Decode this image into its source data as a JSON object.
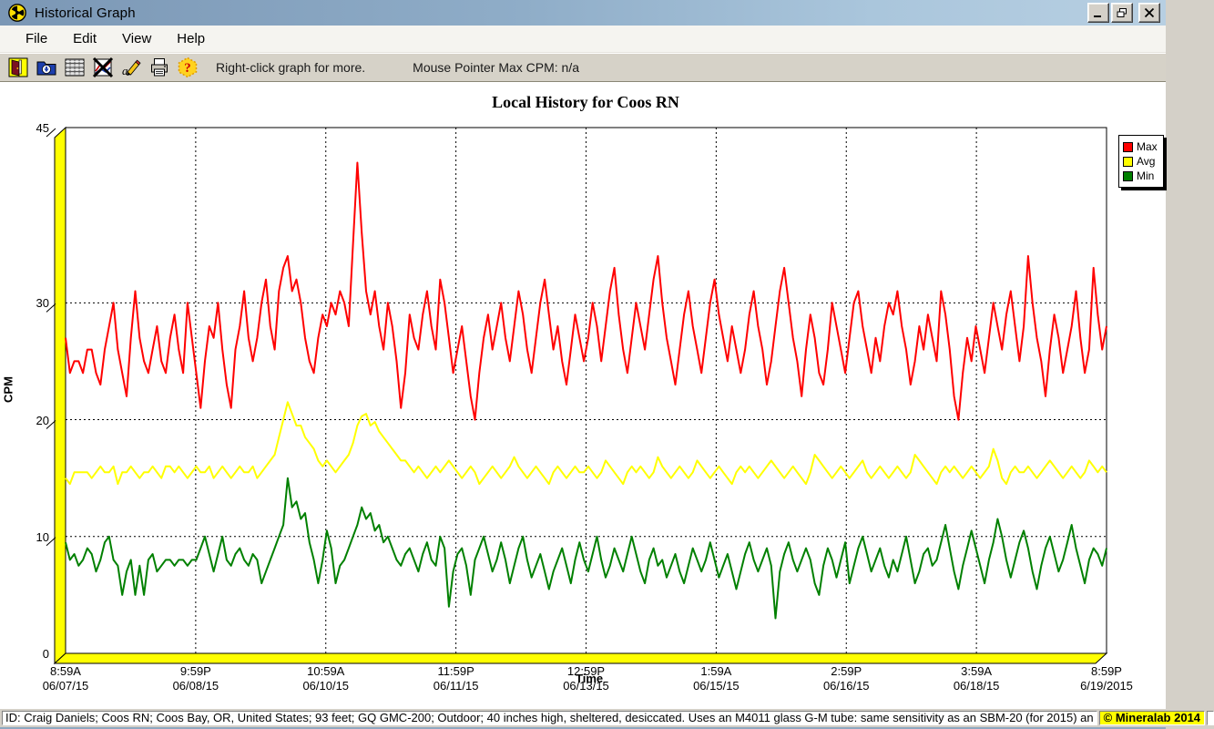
{
  "window": {
    "title": "Historical Graph",
    "app_icon": "radiation-icon",
    "controls": [
      "minimize-icon",
      "restore-icon",
      "close-icon"
    ]
  },
  "menu": {
    "items": [
      "File",
      "Edit",
      "View",
      "Help"
    ]
  },
  "toolbar": {
    "icons": [
      "exit-icon",
      "open-folder-icon",
      "data-table-icon",
      "hide-graph-icon",
      "edit-annotate-icon",
      "print-icon",
      "help-icon"
    ],
    "hint": "Right-click graph for more.",
    "mouse_label": "Mouse Pointer Max CPM: n/a"
  },
  "chart_data": {
    "type": "line",
    "title": "Local History for Coos RN",
    "ylabel": "CPM",
    "xlabel": "Time",
    "ylim": [
      0,
      45
    ],
    "y_ticks": [
      45,
      30,
      20,
      10,
      0
    ],
    "grid_y": [
      30,
      20,
      10
    ],
    "grid": "dashed",
    "legend_position": "top-right",
    "x_tick_labels": [
      {
        "time": "8:59A",
        "date": "06/07/15"
      },
      {
        "time": "9:59P",
        "date": "06/08/15"
      },
      {
        "time": "10:59A",
        "date": "06/10/15"
      },
      {
        "time": "11:59P",
        "date": "06/11/15"
      },
      {
        "time": "12:59P",
        "date": "06/13/15"
      },
      {
        "time": "1:59A",
        "date": "06/15/15"
      },
      {
        "time": "2:59P",
        "date": "06/16/15"
      },
      {
        "time": "3:59A",
        "date": "06/18/15"
      },
      {
        "time": "8:59P",
        "date": "6/19/2015"
      }
    ],
    "axis_wall_color": "#FFFF00",
    "series": [
      {
        "name": "Max",
        "color": "#FF0000",
        "values": [
          27,
          24,
          25,
          25,
          24,
          26,
          26,
          24,
          23,
          26,
          28,
          30,
          26,
          24,
          22,
          27,
          31,
          27,
          25,
          24,
          26,
          28,
          25,
          24,
          27,
          29,
          26,
          24,
          30,
          27,
          24,
          21,
          25,
          28,
          27,
          30,
          26,
          23,
          21,
          26,
          28,
          31,
          27,
          25,
          27,
          30,
          32,
          28,
          26,
          31,
          33,
          34,
          31,
          32,
          30,
          27,
          25,
          24,
          27,
          29,
          28,
          30,
          29,
          31,
          30,
          28,
          35,
          42,
          36,
          31,
          29,
          31,
          28,
          26,
          30,
          28,
          25,
          21,
          24,
          29,
          27,
          26,
          29,
          31,
          28,
          26,
          32,
          30,
          27,
          24,
          26,
          28,
          25,
          22,
          20,
          24,
          27,
          29,
          26,
          28,
          30,
          27,
          25,
          28,
          31,
          29,
          26,
          24,
          27,
          30,
          32,
          29,
          26,
          28,
          25,
          23,
          26,
          29,
          27,
          25,
          27,
          30,
          28,
          25,
          28,
          31,
          33,
          29,
          26,
          24,
          27,
          30,
          28,
          26,
          29,
          32,
          34,
          30,
          27,
          25,
          23,
          26,
          29,
          31,
          28,
          26,
          24,
          27,
          30,
          32,
          29,
          27,
          25,
          28,
          26,
          24,
          26,
          29,
          31,
          28,
          26,
          23,
          25,
          28,
          31,
          33,
          30,
          27,
          25,
          22,
          26,
          29,
          27,
          24,
          23,
          26,
          30,
          28,
          26,
          24,
          27,
          30,
          31,
          28,
          26,
          24,
          27,
          25,
          28,
          30,
          29,
          31,
          28,
          26,
          23,
          25,
          28,
          26,
          29,
          27,
          25,
          31,
          29,
          26,
          22,
          20,
          24,
          27,
          25,
          28,
          26,
          24,
          27,
          30,
          28,
          26,
          29,
          31,
          28,
          25,
          28,
          34,
          30,
          27,
          25,
          22,
          26,
          29,
          27,
          24,
          26,
          28,
          31,
          27,
          24,
          26,
          33,
          29,
          26,
          28
        ]
      },
      {
        "name": "Avg",
        "color": "#FFFF00",
        "values": [
          15,
          14.5,
          15.5,
          15.5,
          15.5,
          15.5,
          15,
          15.5,
          16,
          15.5,
          15.5,
          16,
          14.5,
          15.5,
          15.5,
          16,
          15.5,
          15,
          15.5,
          15.5,
          16,
          15.5,
          15,
          16,
          16,
          15.5,
          16,
          15.5,
          15,
          15.5,
          16,
          15.5,
          15.5,
          16,
          15,
          15.5,
          16,
          15.5,
          15,
          15.5,
          16,
          15.5,
          15.5,
          16,
          15,
          15.5,
          16,
          16.5,
          17,
          18.5,
          20,
          21.5,
          20.5,
          19.5,
          19.5,
          18.5,
          18,
          17.5,
          16.5,
          16,
          16.5,
          16,
          15.5,
          16,
          16.5,
          17,
          18,
          19.5,
          20.3,
          20.5,
          19.5,
          19.8,
          19,
          18.5,
          18,
          17.5,
          17,
          16.5,
          16.5,
          16,
          15.5,
          16,
          15.5,
          15,
          15.5,
          16,
          15.5,
          16,
          16.5,
          16,
          15.5,
          15,
          15.5,
          16,
          15.5,
          14.5,
          15,
          15.5,
          16,
          15.5,
          15,
          15.5,
          16,
          16.8,
          16,
          15.5,
          15,
          15.5,
          16,
          15.5,
          15,
          14.5,
          15.5,
          16,
          15.5,
          15,
          15.5,
          16,
          15.5,
          15.5,
          16,
          15.5,
          15,
          15.5,
          16.5,
          16,
          15.5,
          15,
          14.5,
          15.5,
          16,
          15.5,
          16,
          15.5,
          15,
          15.5,
          16.8,
          16,
          15.5,
          15,
          15.5,
          16,
          15.5,
          15,
          15.5,
          16.5,
          16,
          15.5,
          15,
          15.5,
          16,
          15.5,
          15,
          14.5,
          15.5,
          16,
          15.5,
          16,
          15.5,
          15,
          15.5,
          16,
          16.5,
          16,
          15.5,
          15,
          15.5,
          16,
          15.5,
          15,
          14.5,
          15.5,
          17,
          16.5,
          16,
          15.5,
          15,
          15.5,
          16,
          15.5,
          15,
          15.5,
          16,
          16.5,
          15.5,
          15,
          15.5,
          16,
          15.5,
          15,
          15.5,
          16,
          15.5,
          15,
          15.5,
          17,
          16.5,
          16,
          15.5,
          15,
          14.5,
          15.5,
          16,
          15.5,
          16,
          15.5,
          15,
          15.5,
          16,
          15.5,
          15,
          15.5,
          16,
          17.5,
          16.5,
          15,
          14.5,
          15.5,
          16,
          15.5,
          15.5,
          16,
          15.5,
          15,
          15.5,
          16,
          16.5,
          16,
          15.5,
          15,
          15.5,
          16,
          15.5,
          15,
          15.5,
          16.5,
          16,
          15.5,
          16,
          15.5
        ]
      },
      {
        "name": "Min",
        "color": "#008000",
        "values": [
          9.5,
          8,
          8.5,
          7.5,
          8,
          9,
          8.5,
          7,
          8,
          9.5,
          10,
          8,
          7.5,
          5,
          7,
          8,
          5,
          7.5,
          5,
          8,
          8.5,
          7,
          7.5,
          8,
          8,
          7.5,
          8,
          8,
          7.5,
          8,
          8,
          9,
          10,
          8.5,
          7,
          8.5,
          10,
          8,
          7.5,
          8.5,
          9,
          8,
          7.5,
          8.5,
          8,
          6,
          7,
          8,
          9,
          10,
          11,
          15,
          12.5,
          13,
          11.5,
          12,
          9.5,
          8,
          6,
          8,
          10.5,
          9,
          6,
          7.5,
          8,
          9,
          10,
          11,
          12.5,
          11.5,
          12,
          10.5,
          11,
          9.5,
          10,
          9,
          8,
          7.5,
          8.5,
          9,
          8,
          7,
          8.5,
          9.5,
          8,
          7.5,
          10,
          9,
          4,
          7,
          8.5,
          9,
          7.5,
          5,
          8,
          9,
          10,
          8.5,
          7,
          8,
          9.5,
          8,
          6,
          7.5,
          9,
          10,
          8,
          6.5,
          7.5,
          8.5,
          7,
          5.5,
          7,
          8,
          9,
          7.5,
          6,
          8,
          9.5,
          8,
          7,
          8.5,
          10,
          8,
          6.5,
          7.5,
          9,
          8,
          7,
          8.5,
          10,
          8.5,
          7,
          6,
          8,
          9,
          7.5,
          8,
          6.5,
          7.5,
          8.5,
          7,
          6,
          7.5,
          9,
          8,
          7,
          8,
          9.5,
          8,
          6.5,
          7.5,
          8.5,
          7,
          5.5,
          7,
          8.5,
          9.5,
          8,
          7,
          8,
          9,
          7.5,
          3,
          7,
          8.5,
          9.5,
          8,
          7,
          8,
          9,
          8,
          6,
          5,
          7.5,
          9,
          8,
          6.5,
          8,
          9.5,
          6,
          7.5,
          9,
          10,
          8.5,
          7,
          8,
          9,
          7.5,
          6.5,
          8,
          7,
          8.5,
          10,
          8,
          6,
          7,
          8.5,
          9,
          7.5,
          8,
          9.5,
          11,
          9,
          7,
          5.5,
          7.5,
          9,
          10.5,
          9,
          7.5,
          6,
          8,
          9.5,
          11.5,
          10,
          8,
          6.5,
          8,
          9.5,
          10.5,
          9,
          7,
          5.5,
          7.5,
          9,
          10,
          8.5,
          7,
          8,
          9.5,
          11,
          9,
          7.5,
          6,
          8,
          9,
          8.5,
          7.5,
          9
        ]
      }
    ]
  },
  "status_bar": {
    "info": "ID: Craig Daniels; Coos RN; Coos Bay, OR, United States; 93 feet; GQ GMC-200; Outdoor; 40 inches high, sheltered, desiccated. Uses an M4011 glass G-M tube: same sensitivity as an SBM-20 (for 2015) an",
    "copyright": "© Mineralab 2014"
  }
}
